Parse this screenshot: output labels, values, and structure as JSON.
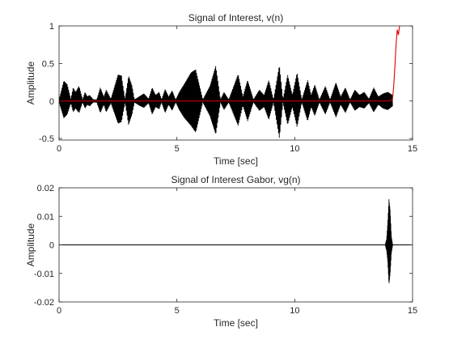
{
  "chart_data": [
    {
      "type": "line",
      "title": "Signal of Interest, v(n)",
      "xlabel": "Time [sec]",
      "ylabel": "Amplitude",
      "xlim": [
        0,
        15
      ],
      "ylim": [
        -0.52,
        1
      ],
      "xticks": [
        0,
        5,
        10,
        15
      ],
      "yticks": [
        -0.5,
        0,
        0.5,
        1
      ],
      "grid": false,
      "series": [
        {
          "color": "#000000",
          "style": "dense-oscillation",
          "envelope": {
            "x": [
              0.0,
              0.2,
              0.35,
              0.5,
              0.6,
              0.7,
              0.85,
              1.0,
              1.1,
              1.2,
              1.3,
              1.45,
              1.6,
              1.75,
              1.9,
              2.0,
              2.2,
              2.5,
              2.65,
              2.8,
              2.95,
              3.1,
              3.2,
              3.4,
              3.6,
              3.8,
              3.95,
              4.1,
              4.25,
              4.35,
              4.5,
              4.65,
              4.8,
              4.95,
              5.1,
              5.3,
              5.6,
              5.8,
              6.1,
              6.4,
              6.65,
              6.85,
              7.0,
              7.2,
              7.6,
              7.8,
              8.0,
              8.25,
              8.5,
              8.7,
              8.9,
              9.1,
              9.35,
              9.5,
              9.7,
              9.9,
              10.1,
              10.3,
              10.55,
              10.7,
              10.85,
              11.05,
              11.3,
              11.5,
              11.75,
              11.95,
              12.15,
              12.35,
              12.55,
              12.75,
              12.95,
              13.15,
              13.35,
              13.55,
              13.75,
              13.95,
              14.15
            ],
            "top": [
              0.02,
              0.27,
              0.22,
              0.03,
              0.18,
              0.12,
              0.2,
              0.02,
              0.12,
              0.06,
              0.08,
              0.02,
              0.02,
              0.18,
              0.06,
              0.15,
              0.03,
              0.35,
              0.34,
              0.02,
              0.34,
              0.2,
              0.02,
              0.06,
              0.1,
              0.03,
              0.18,
              0.08,
              0.12,
              0.02,
              0.16,
              0.06,
              0.14,
              0.02,
              0.12,
              0.22,
              0.38,
              0.42,
              0.02,
              0.2,
              0.47,
              0.02,
              0.12,
              0.02,
              0.36,
              0.06,
              0.28,
              0.02,
              0.15,
              0.08,
              0.28,
              0.02,
              0.48,
              0.02,
              0.35,
              0.08,
              0.38,
              0.02,
              0.28,
              0.08,
              0.22,
              0.02,
              0.2,
              0.02,
              0.25,
              0.06,
              0.18,
              0.02,
              0.15,
              0.08,
              0.12,
              0.03,
              0.18,
              0.06,
              0.1,
              0.12,
              0.08
            ],
            "bottom": [
              -0.02,
              -0.23,
              -0.18,
              -0.03,
              -0.15,
              -0.1,
              -0.16,
              -0.02,
              -0.1,
              -0.05,
              -0.07,
              -0.02,
              -0.02,
              -0.16,
              -0.05,
              -0.15,
              -0.03,
              -0.3,
              -0.28,
              -0.02,
              -0.32,
              -0.18,
              -0.02,
              -0.06,
              -0.09,
              -0.03,
              -0.18,
              -0.08,
              -0.11,
              -0.02,
              -0.16,
              -0.05,
              -0.13,
              -0.02,
              -0.12,
              -0.22,
              -0.33,
              -0.42,
              -0.02,
              -0.2,
              -0.45,
              -0.02,
              -0.12,
              -0.02,
              -0.33,
              -0.06,
              -0.27,
              -0.02,
              -0.13,
              -0.08,
              -0.25,
              -0.02,
              -0.5,
              -0.02,
              -0.32,
              -0.08,
              -0.35,
              -0.02,
              -0.27,
              -0.08,
              -0.2,
              -0.02,
              -0.18,
              -0.02,
              -0.22,
              -0.05,
              -0.16,
              -0.02,
              -0.13,
              -0.08,
              -0.1,
              -0.03,
              -0.15,
              -0.05,
              -0.1,
              -0.12,
              -0.07
            ]
          }
        },
        {
          "color": "#e00000",
          "style": "line",
          "x": [
            0,
            14.0,
            14.15,
            14.2,
            14.25,
            14.3,
            14.35,
            14.4,
            14.45
          ],
          "y": [
            0,
            0,
            0.02,
            0.2,
            0.45,
            0.75,
            0.95,
            0.88,
            1.0
          ]
        }
      ]
    },
    {
      "type": "line",
      "title": "Signal of Interest Gabor, vg(n)",
      "xlabel": "Time [sec]",
      "ylabel": "Amplitude",
      "xlim": [
        0,
        15
      ],
      "ylim": [
        -0.02,
        0.02
      ],
      "xticks": [
        0,
        5,
        10,
        15
      ],
      "yticks": [
        -0.02,
        -0.01,
        0,
        0.01,
        0.02
      ],
      "grid": false,
      "series": [
        {
          "color": "#000000",
          "style": "line",
          "x": [
            0,
            15
          ],
          "y": [
            0,
            0
          ]
        },
        {
          "color": "#000000",
          "style": "dense-oscillation",
          "envelope": {
            "x": [
              13.85,
              13.9,
              13.95,
              14.0,
              14.05,
              14.1,
              14.15
            ],
            "top": [
              0.0005,
              0.002,
              0.008,
              0.016,
              0.012,
              0.003,
              0.0005
            ],
            "bottom": [
              -0.0005,
              -0.002,
              -0.006,
              -0.014,
              -0.01,
              -0.003,
              -0.0005
            ]
          }
        }
      ]
    }
  ]
}
